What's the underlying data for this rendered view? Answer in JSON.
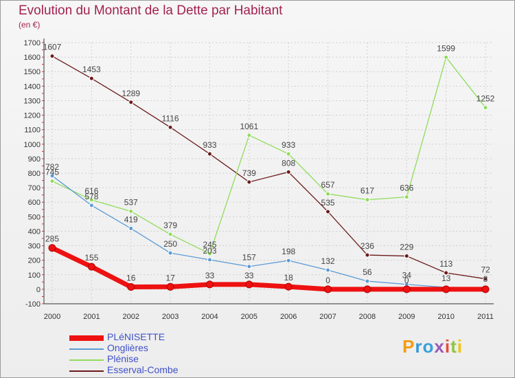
{
  "chart_data": {
    "type": "line",
    "title": "Evolution du Montant de la Dette par Habitant",
    "subtitle": "(en €)",
    "x": [
      "2000",
      "2001",
      "2002",
      "2003",
      "2004",
      "2005",
      "2006",
      "2007",
      "2008",
      "2009",
      "2010",
      "2011"
    ],
    "ylim": [
      -100,
      1700
    ],
    "yticks": [
      -100,
      0,
      100,
      200,
      300,
      400,
      500,
      600,
      700,
      800,
      900,
      1000,
      1100,
      1200,
      1300,
      1400,
      1500,
      1600,
      1700
    ],
    "grid": true,
    "legend_position": "bottom-left",
    "series": [
      {
        "name": "Esserval-Combe",
        "color": "#6b1a1a",
        "values": [
          1607,
          1453,
          1289,
          1116,
          933,
          739,
          808,
          535,
          236,
          229,
          113,
          72
        ],
        "labels": [
          "1607",
          "1453",
          "1289",
          "1116",
          "933",
          "739",
          "808",
          "535",
          "236",
          "229",
          "113",
          "72"
        ]
      },
      {
        "name": "Plénise",
        "color": "#8fdc5a",
        "values": [
          745,
          616,
          537,
          379,
          245,
          1061,
          933,
          657,
          617,
          636,
          1599,
          1252
        ],
        "labels": [
          "745",
          "616",
          "537",
          "379",
          "245",
          "1061",
          "933",
          "657",
          "617",
          "636",
          "1599",
          "1252"
        ]
      },
      {
        "name": "Onglières",
        "color": "#5b9bd5",
        "values": [
          782,
          578,
          419,
          250,
          203,
          157,
          198,
          132,
          56,
          34,
          13,
          8
        ],
        "labels": [
          "782",
          "578",
          "419",
          "250",
          "203",
          "157",
          "198",
          "132",
          "56",
          "34",
          "13",
          "8"
        ]
      },
      {
        "name": "PLéNISETTE",
        "color": "#ee1111",
        "values": [
          285,
          155,
          16,
          17,
          33,
          33,
          18,
          0,
          0,
          0,
          0,
          0
        ],
        "labels": [
          "285",
          "155",
          "16",
          "17",
          "33",
          "33",
          "18",
          "0",
          "",
          "0",
          "",
          ""
        ]
      }
    ]
  },
  "legend": [
    {
      "label": "PLéNISETTE",
      "color": "#ee1111",
      "thickness": 8
    },
    {
      "label": "Onglières",
      "color": "#5b9bd5",
      "thickness": 2
    },
    {
      "label": "Plénise",
      "color": "#8fdc5a",
      "thickness": 2
    },
    {
      "label": "Esserval-Combe",
      "color": "#6b1a1a",
      "thickness": 2
    }
  ],
  "brand": {
    "letters": [
      {
        "ch": "P",
        "color": "#f39c12"
      },
      {
        "ch": "r",
        "color": "#3498db"
      },
      {
        "ch": "o",
        "color": "#3aa0d8"
      },
      {
        "ch": "x",
        "color": "#9b59b6"
      },
      {
        "ch": "i",
        "color": "#e74c3c"
      },
      {
        "ch": "t",
        "color": "#8cc63f"
      },
      {
        "ch": "i",
        "color": "#f1c40f"
      }
    ]
  }
}
